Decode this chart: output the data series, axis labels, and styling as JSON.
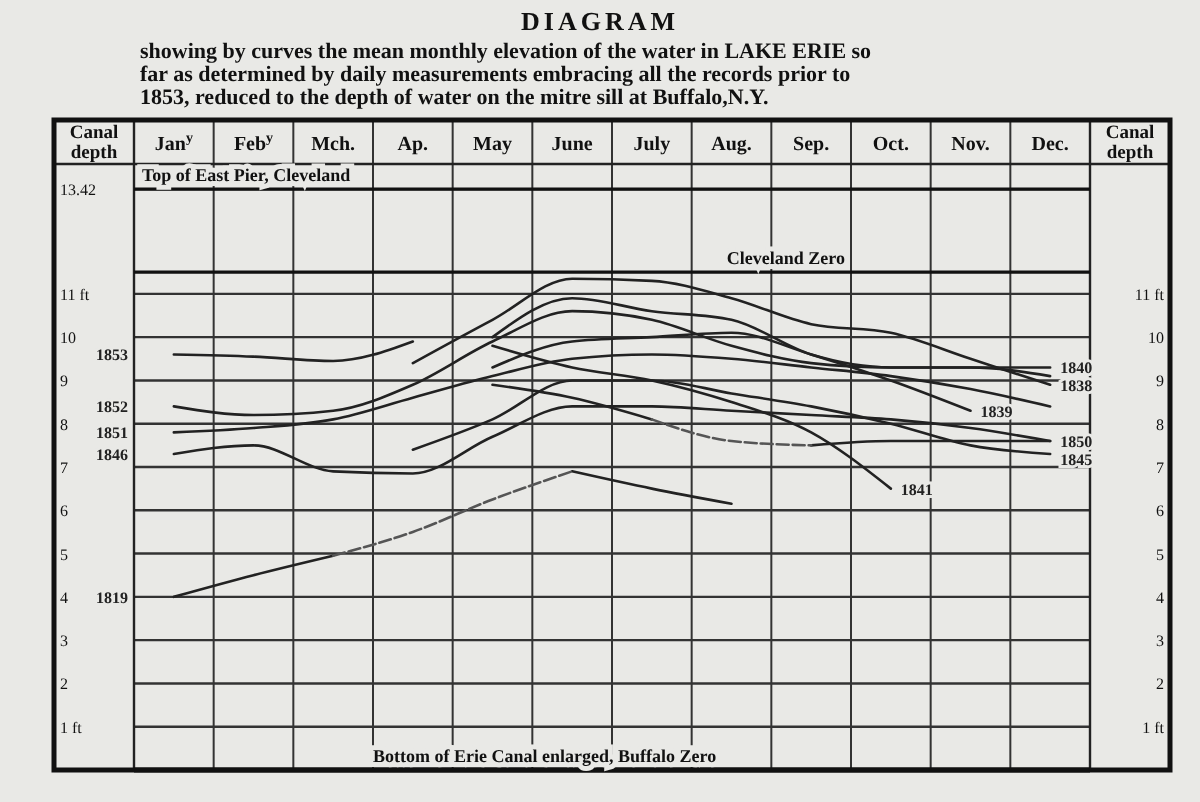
{
  "chart_data": {
    "type": "line",
    "title": "DIAGRAM",
    "subtitle": "showing by curves the mean monthly elevation of the water in LAKE ERIE so far as determined by daily measurements embracing all the records prior to 1853, reduced to the depth of water on the mitre sill at Buffalo,N.Y.",
    "categories": [
      "Jan$^{y}$",
      "Feb$^{y}$",
      "Mch.",
      "Ap.",
      "May",
      "June",
      "July",
      "Aug.",
      "Sep.",
      "Oct.",
      "Nov.",
      "Dec."
    ],
    "ylabel": "Canal depth",
    "y2label": "Canal depth",
    "ylim": [
      0,
      14
    ],
    "yticks": [
      {
        "value": 1,
        "label": "1 ft"
      },
      2,
      3,
      4,
      5,
      6,
      7,
      8,
      9,
      10,
      {
        "value": 11,
        "label": "11 ft"
      },
      13.42
    ],
    "y2lim": [
      0,
      14
    ],
    "y2ticks": [
      {
        "value": 1,
        "label": "1 ft"
      },
      2,
      3,
      4,
      5,
      6,
      7,
      8,
      9,
      10,
      {
        "value": 11,
        "label": "11 ft"
      }
    ],
    "grid": true,
    "ref_lines": [
      {
        "axis": "y",
        "value": 13.42,
        "label": "Top of East Pier, Cleveland"
      },
      {
        "axis": "y",
        "value": 11.5,
        "label": "Cleveland Zero"
      },
      {
        "axis": "y",
        "value": 0,
        "label": "Bottom of Erie Canal enlarged, Buffalo Zero"
      }
    ],
    "series": [
      {
        "name": "1853",
        "color": "#222222",
        "values": [
          9.6,
          9.55,
          9.45,
          9.9,
          null,
          null,
          null,
          null,
          null,
          null,
          null,
          null
        ]
      },
      {
        "name": "1852",
        "color": "#222222",
        "values": [
          8.4,
          8.2,
          8.3,
          8.9,
          9.9,
          10.6,
          10.4,
          9.8,
          9.4,
          9.3,
          9.3,
          9.1
        ]
      },
      {
        "name": "1851",
        "color": "#222222",
        "values": [
          7.8,
          7.9,
          8.1,
          8.6,
          9.1,
          9.5,
          9.6,
          9.5,
          9.3,
          9.1,
          8.8,
          8.4
        ]
      },
      {
        "name": "1846",
        "color": "#222222",
        "values": [
          7.3,
          7.5,
          6.9,
          6.85,
          7.7,
          8.4,
          8.4,
          8.3,
          8.2,
          8.1,
          7.9,
          7.6
        ]
      },
      {
        "name": "1845",
        "color": "#222222",
        "values": [
          null,
          null,
          null,
          7.4,
          8.1,
          9.0,
          9.0,
          8.7,
          8.4,
          8.0,
          7.5,
          7.3
        ]
      },
      {
        "name": "1838",
        "color": "#222222",
        "values": [
          null,
          null,
          null,
          9.4,
          10.4,
          11.35,
          11.3,
          10.9,
          10.3,
          10.1,
          9.5,
          8.9
        ]
      },
      {
        "name": "1840",
        "color": "#222222",
        "values": [
          null,
          null,
          null,
          null,
          10.0,
          10.9,
          10.6,
          10.4,
          9.6,
          9.3,
          9.3,
          9.3
        ]
      },
      {
        "name": "1839",
        "color": "#222222",
        "values": [
          null,
          null,
          null,
          null,
          9.3,
          9.9,
          10.0,
          10.1,
          9.6,
          9.0,
          8.3,
          null
        ]
      },
      {
        "name": "1841",
        "color": "#222222",
        "values": [
          null,
          null,
          null,
          null,
          9.8,
          9.3,
          9.0,
          8.5,
          7.8,
          6.5,
          null,
          null
        ]
      },
      {
        "name": "1850",
        "color": "#222222",
        "values": [
          null,
          null,
          null,
          null,
          8.9,
          8.6,
          8.1,
          null,
          7.5,
          7.6,
          7.6,
          7.6
        ]
      },
      {
        "color": "#555555",
        "line_style": "dashed",
        "values": [
          null,
          null,
          null,
          null,
          null,
          null,
          8.1,
          7.6,
          7.5,
          null,
          null,
          null
        ]
      },
      {
        "name": "1819",
        "color": "#222222",
        "values": [
          4.0,
          4.5,
          4.95,
          null,
          null,
          6.9,
          6.5,
          6.15,
          null,
          null,
          null,
          null
        ]
      },
      {
        "color": "#555555",
        "line_style": "dashed",
        "values": [
          null,
          null,
          4.95,
          5.5,
          6.25,
          6.9,
          null,
          null,
          null,
          null,
          null,
          null
        ]
      }
    ]
  }
}
